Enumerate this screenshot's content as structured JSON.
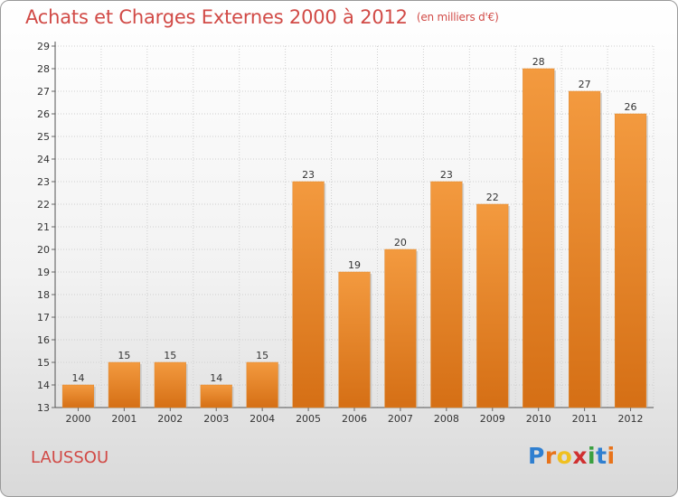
{
  "header": {
    "title": "Achats et Charges Externes 2000 à 2012",
    "unit": "(en milliers d'€)"
  },
  "footer": {
    "commune": "LAUSSOU",
    "logo_letters": [
      "P",
      "r",
      "o",
      "x",
      "i",
      "t",
      "i"
    ],
    "logo_colors": [
      "#2f7fd0",
      "#e8731a",
      "#f0c020",
      "#d03030",
      "#3aa040",
      "#2f7fd0",
      "#e8731a"
    ]
  },
  "chart_data": {
    "type": "bar",
    "categories": [
      "2000",
      "2001",
      "2002",
      "2003",
      "2004",
      "2005",
      "2006",
      "2007",
      "2008",
      "2009",
      "2010",
      "2011",
      "2012"
    ],
    "values": [
      14,
      15,
      15,
      14,
      15,
      23,
      19,
      20,
      23,
      22,
      28,
      27,
      26
    ],
    "ylim": [
      13,
      29
    ],
    "yticks": [
      13,
      14,
      15,
      16,
      17,
      18,
      19,
      20,
      21,
      22,
      23,
      24,
      25,
      26,
      27,
      28,
      29
    ],
    "grid": true,
    "bar_color": "#f39a3f",
    "bar_color_dark": "#d56f15"
  }
}
